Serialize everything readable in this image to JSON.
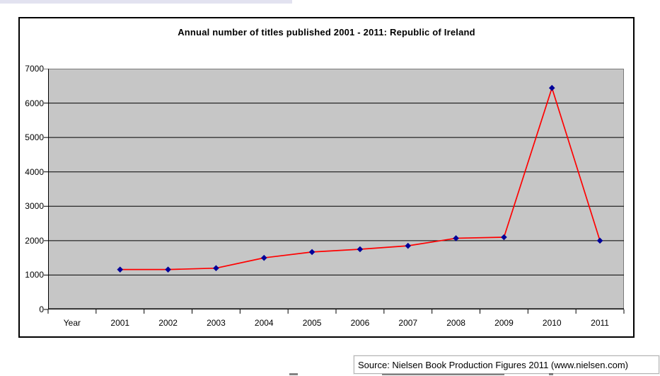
{
  "page": {
    "background": "#ffffff",
    "top_bar_color": "#e2e2f0"
  },
  "chart_data": {
    "type": "line",
    "title": "Annual number of titles published 2001 - 2011: Republic of Ireland",
    "categories": [
      "Year",
      "2001",
      "2002",
      "2003",
      "2004",
      "2005",
      "2006",
      "2007",
      "2008",
      "2009",
      "2010",
      "2011"
    ],
    "series": [
      {
        "name": "Annual number of titles published",
        "values": [
          null,
          1160,
          1160,
          1200,
          1500,
          1670,
          1750,
          1850,
          2070,
          2100,
          6440,
          2000
        ]
      }
    ],
    "ylim": [
      0,
      7000
    ],
    "yticks": [
      0,
      1000,
      2000,
      3000,
      4000,
      5000,
      6000,
      7000
    ],
    "grid": true,
    "legend": false,
    "line_color": "#ff0000",
    "marker_color": "#000099",
    "marker_shape": "diamond",
    "plot_bg": "#c6c6c6",
    "grid_color": "#000000",
    "plot_border_color": "#7a7a7a"
  },
  "source": {
    "label": "Source: Nielsen Book Production Figures 2011 (www.nielsen.com)"
  }
}
